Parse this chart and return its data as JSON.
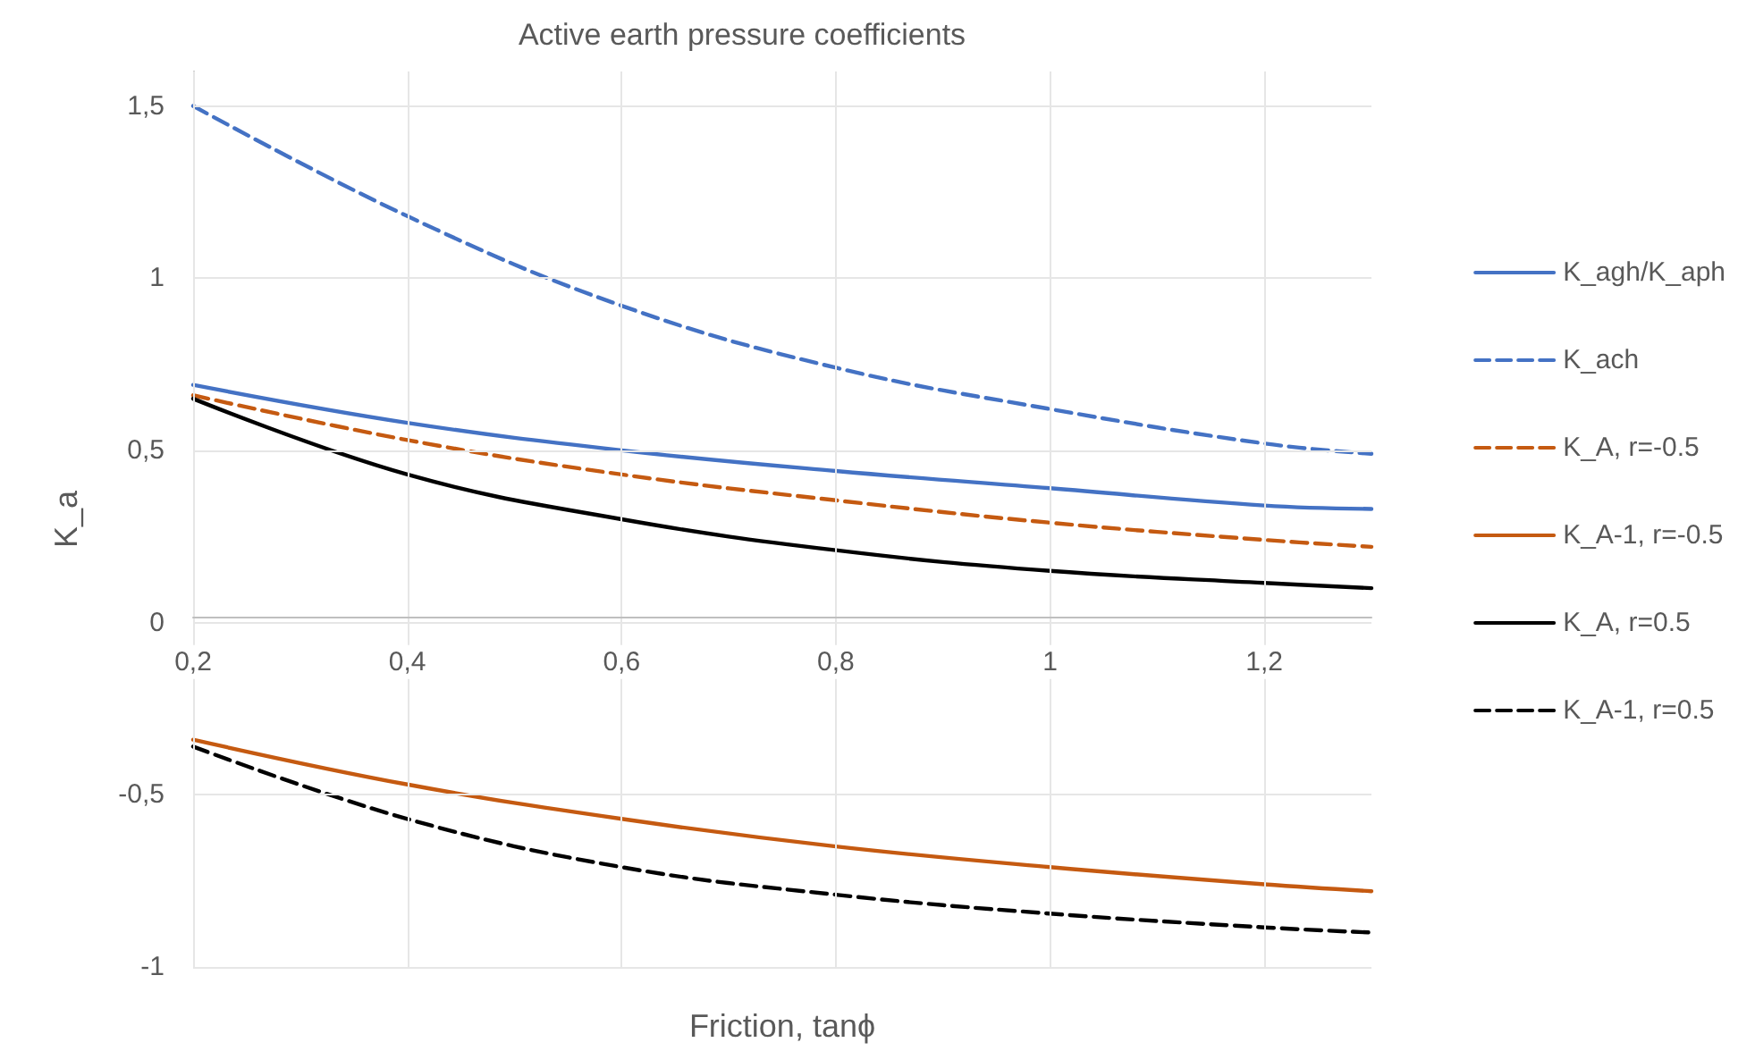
{
  "chart_data": {
    "type": "line",
    "title": "Active earth pressure coefficients",
    "xlabel": "Friction, tanϕ",
    "ylabel": "K_a",
    "x": [
      0.2,
      0.4,
      0.6,
      0.8,
      1.0,
      1.2,
      1.3
    ],
    "xlim": [
      0.2,
      1.3
    ],
    "xticks": [
      {
        "value": 0.2,
        "label": "0,2"
      },
      {
        "value": 0.4,
        "label": "0,4"
      },
      {
        "value": 0.6,
        "label": "0,6"
      },
      {
        "value": 0.8,
        "label": "0,8"
      },
      {
        "value": 1,
        "label": "1"
      },
      {
        "value": 1.2,
        "label": "1,2"
      }
    ],
    "ylim": [
      -1,
      1.6
    ],
    "yticks": [
      {
        "value": -1,
        "label": "-1"
      },
      {
        "value": -0.5,
        "label": "-0,5"
      },
      {
        "value": 0,
        "label": "0"
      },
      {
        "value": 0.5,
        "label": "0,5"
      },
      {
        "value": 1,
        "label": "1"
      },
      {
        "value": 1.5,
        "label": "1,5"
      }
    ],
    "grid": true,
    "legend": "right",
    "marker": "none",
    "series": [
      {
        "name": "K_agh/K_aph",
        "color": "#4472c4",
        "line_style": "solid",
        "values": [
          0.69,
          0.58,
          0.5,
          0.44,
          0.39,
          0.34,
          0.33
        ]
      },
      {
        "name": "K_ach",
        "color": "#4472c4",
        "line_style": "dashed",
        "values": [
          1.5,
          1.18,
          0.92,
          0.74,
          0.62,
          0.52,
          0.49
        ]
      },
      {
        "name": "K_A, r=-0.5",
        "color": "#c55a11",
        "line_style": "dashed",
        "values": [
          0.66,
          0.53,
          0.43,
          0.355,
          0.29,
          0.24,
          0.22
        ]
      },
      {
        "name": "K_A-1, r=-0.5",
        "color": "#c55a11",
        "line_style": "solid",
        "values": [
          -0.34,
          -0.47,
          -0.57,
          -0.65,
          -0.71,
          -0.76,
          -0.78
        ]
      },
      {
        "name": "K_A, r=0.5",
        "color": "#000000",
        "line_style": "solid",
        "values": [
          0.65,
          0.43,
          0.3,
          0.21,
          0.15,
          0.115,
          0.1
        ]
      },
      {
        "name": "K_A-1, r=0.5",
        "color": "#000000",
        "line_style": "dashed",
        "values": [
          -0.36,
          -0.57,
          -0.71,
          -0.79,
          -0.845,
          -0.885,
          -0.9
        ]
      }
    ]
  }
}
